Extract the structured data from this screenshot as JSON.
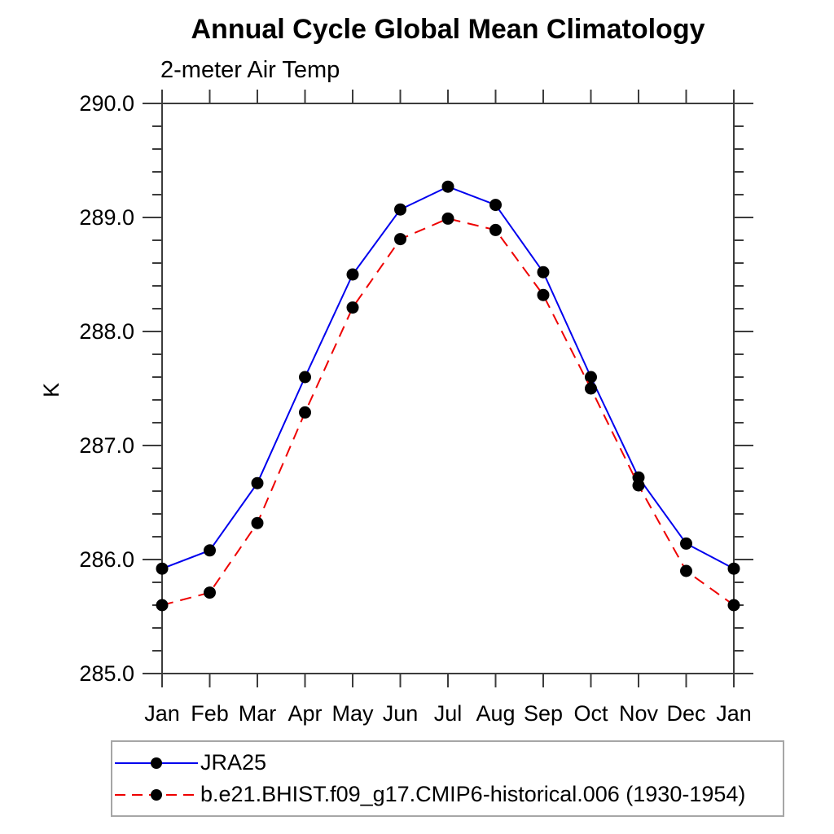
{
  "chart_data": {
    "type": "line",
    "title": "Annual Cycle Global Mean Climatology",
    "subtitle": "2-meter Air Temp",
    "ylabel": "K",
    "x_tick_labels": [
      "Jan",
      "Feb",
      "Mar",
      "Apr",
      "May",
      "Jun",
      "Jul",
      "Aug",
      "Sep",
      "Oct",
      "Nov",
      "Dec",
      "Jan"
    ],
    "y_ticks": [
      285.0,
      286.0,
      287.0,
      288.0,
      289.0,
      290.0
    ],
    "y_tick_labels": [
      "285.0",
      "286.0",
      "287.0",
      "288.0",
      "289.0",
      "290.0"
    ],
    "ylim": [
      285.0,
      290.0
    ],
    "y_minor_step": 0.2,
    "grid": false,
    "legend_position": "bottom-left",
    "series": [
      {
        "name": "JRA25",
        "color": "#0000ee",
        "line_style": "solid",
        "marker": "circle",
        "marker_color": "#000000",
        "values": [
          285.92,
          286.08,
          286.67,
          287.6,
          288.5,
          289.07,
          289.27,
          289.11,
          288.52,
          287.6,
          286.72,
          286.14,
          285.92
        ]
      },
      {
        "name": "b.e21.BHIST.f09_g17.CMIP6-historical.006 (1930-1954)",
        "color": "#ee0000",
        "line_style": "dashed",
        "marker": "circle",
        "marker_color": "#000000",
        "values": [
          285.6,
          285.71,
          286.32,
          287.29,
          288.21,
          288.81,
          288.99,
          288.89,
          288.32,
          287.5,
          286.65,
          285.9,
          285.6
        ]
      }
    ]
  }
}
